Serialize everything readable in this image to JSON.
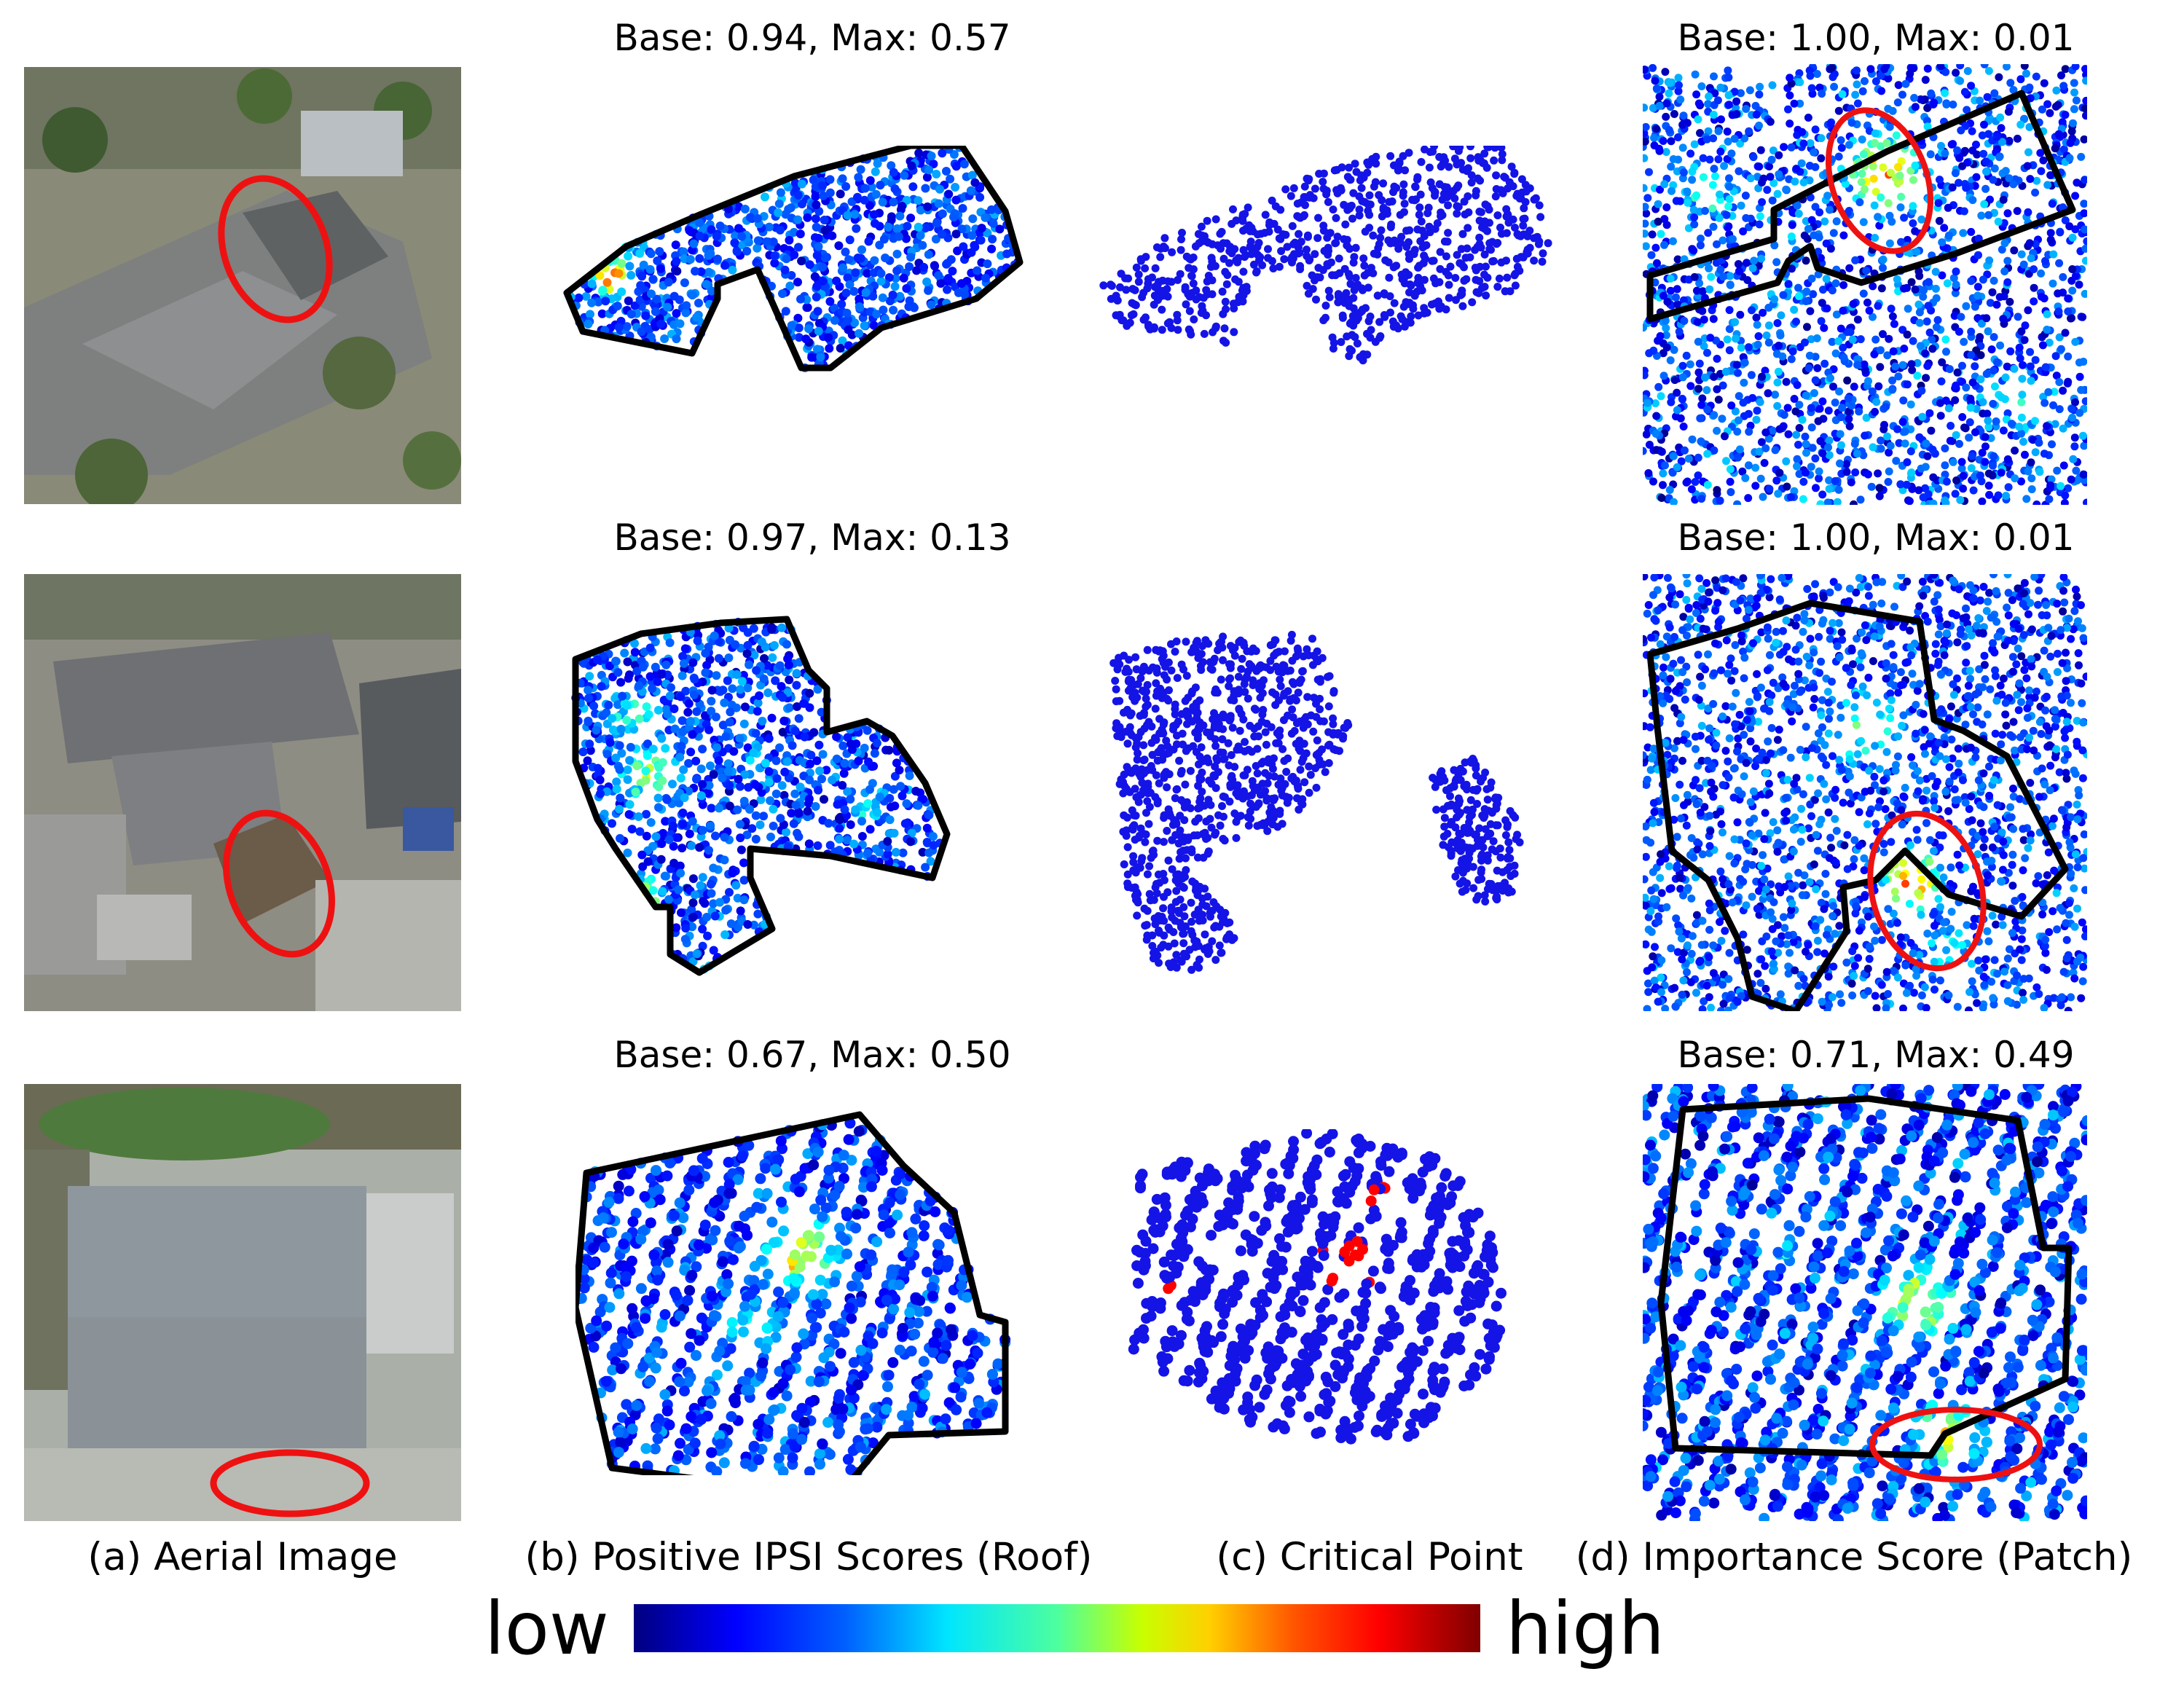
{
  "rows": [
    {
      "b_title": "Base: 0.94, Max: 0.57",
      "d_title": "Base: 1.00, Max: 0.01"
    },
    {
      "b_title": "Base: 0.97, Max: 0.13",
      "d_title": "Base: 1.00, Max: 0.01"
    },
    {
      "b_title": "Base: 0.67, Max: 0.50",
      "d_title": "Base: 0.71, Max: 0.49"
    }
  ],
  "captions": {
    "a": "(a) Aerial Image",
    "b": "(b) Positive IPSI Scores (Roof)",
    "c": "(c) Critical Point",
    "d": "(d) Importance Score (Patch)"
  },
  "colorbar": {
    "low": "low",
    "high": "high"
  },
  "colors": {
    "outline": "#000000",
    "ellipse": "#ee1111",
    "base_point": "#1010e0"
  }
}
